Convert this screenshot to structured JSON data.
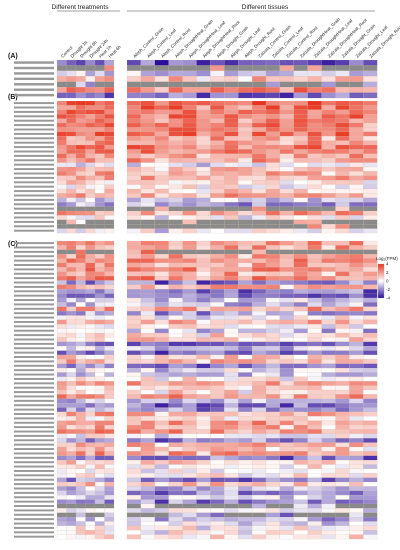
{
  "chart_data": {
    "type": "heatmap",
    "group_labels": {
      "treatments": "Different treatments",
      "tissues": "Different tissues"
    },
    "panels": [
      "(A)",
      "(B)",
      "(C)"
    ],
    "columns_treatments": [
      "Control",
      "Drought 1h",
      "Drought 6h",
      "Drought 24h",
      "Heat 1h",
      "Heat 6h"
    ],
    "columns_tissues": [
      "Aleph_Control_Grain",
      "Aleph_Control_Leaf",
      "Aleph_Control_Root",
      "Aleph_DroughtHeat_Grain",
      "Aleph_DroughtHeat_Leaf",
      "Aleph_DroughtHeat_Root",
      "Aleph_Drought_Grain",
      "Aleph_Drought_Leaf",
      "Aleph_Drought_Root",
      "Zalzala_Control_Grain",
      "Zalzala_Control_Leaf",
      "Zalzala_Control_Root",
      "Zalzala_DroughtHeat_Grain",
      "Zalzala_DroughtHeat_Leaf",
      "Zalzala_DroughtHeat_Root",
      "Zalzala_Drought_Grain",
      "Zalzala_Drought_Leaf",
      "Zalzala_Drought_Root"
    ],
    "row_counts": [
      7,
      30,
      68
    ],
    "legend": {
      "title": "Log₂(FPM)",
      "ticks": [
        "4",
        "2",
        "0",
        "-2",
        "-4"
      ],
      "min": -4,
      "max": 4
    },
    "colors": {
      "high": "#e8341f",
      "mid": "#ffffff",
      "low": "#2c0d9a",
      "missing": "#8a8a8a"
    }
  }
}
